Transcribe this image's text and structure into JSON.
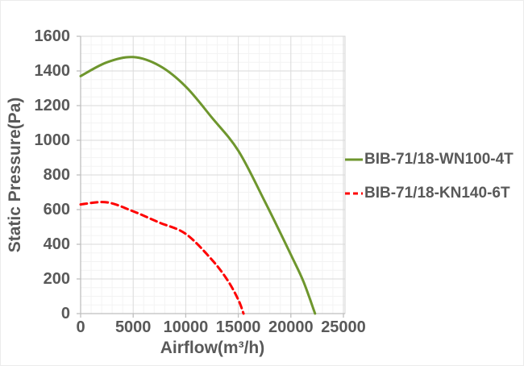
{
  "chart_data": {
    "type": "line",
    "title": "",
    "xlabel": "Airflow(m³/h)",
    "ylabel": "Static Pressure(Pa)",
    "xlim": [
      0,
      25000
    ],
    "ylim": [
      0,
      1600
    ],
    "x_ticks": [
      0,
      5000,
      10000,
      15000,
      20000,
      25000
    ],
    "y_ticks": [
      0,
      200,
      400,
      600,
      800,
      1000,
      1200,
      1400,
      1600
    ],
    "x_minor_step": 1000,
    "y_minor_step": 50,
    "grid": "major and minor gridlines on",
    "legend_position": "right",
    "colors": {
      "major_grid": "#dadada",
      "minor_grid": "#f3f3f3",
      "axis_line": "#bfbfbf",
      "plot_border": "#d6d6d6",
      "label_text": "#595959"
    },
    "series": [
      {
        "name": "BIB-71/18-WN100-4T",
        "color": "#6E962D",
        "style": "solid",
        "points": [
          [
            0,
            1370
          ],
          [
            2500,
            1450
          ],
          [
            5000,
            1480
          ],
          [
            7500,
            1430
          ],
          [
            10000,
            1310
          ],
          [
            12500,
            1130
          ],
          [
            15000,
            940
          ],
          [
            17500,
            650
          ],
          [
            20000,
            340
          ],
          [
            21200,
            185
          ],
          [
            22300,
            0
          ]
        ]
      },
      {
        "name": "BIB-71/18-KN140-6T",
        "color": "#FE0000",
        "style": "dashed",
        "points": [
          [
            0,
            630
          ],
          [
            2500,
            642
          ],
          [
            5000,
            590
          ],
          [
            7500,
            525
          ],
          [
            10000,
            460
          ],
          [
            12500,
            310
          ],
          [
            14000,
            190
          ],
          [
            15000,
            80
          ],
          [
            15500,
            0
          ]
        ]
      }
    ]
  }
}
